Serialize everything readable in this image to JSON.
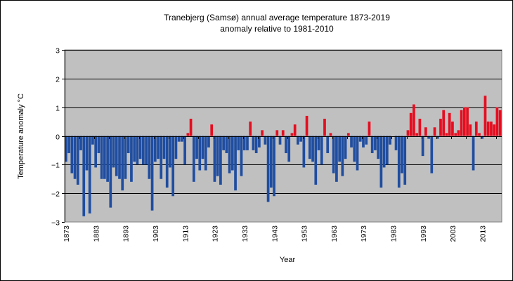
{
  "chart_data": {
    "type": "bar",
    "title": "Tranebjerg (Samsø) annual average  temperature 1873-2019",
    "subtitle": "anomaly relative to 1981-2010",
    "xlabel": "Year",
    "ylabel": "Temperature anomaly °C",
    "ylim": [
      -3,
      3
    ],
    "yticks": [
      3,
      2,
      1,
      0,
      -1,
      -2,
      -3
    ],
    "xticks": [
      "1873",
      "1883",
      "1893",
      "1903",
      "1913",
      "1923",
      "1933",
      "1943",
      "1953",
      "1963",
      "1973",
      "1983",
      "1993",
      "2003",
      "2013"
    ],
    "grid": true,
    "legend": "none",
    "colors": {
      "positive": "#e60d1f",
      "negative": "#1f4da0",
      "plot_background": "#c0c0c0",
      "gridline": "#000000"
    },
    "x": [
      1873,
      1874,
      1875,
      1876,
      1877,
      1878,
      1879,
      1880,
      1881,
      1882,
      1883,
      1884,
      1885,
      1886,
      1887,
      1888,
      1889,
      1890,
      1891,
      1892,
      1893,
      1894,
      1895,
      1896,
      1897,
      1898,
      1899,
      1900,
      1901,
      1902,
      1903,
      1904,
      1905,
      1906,
      1907,
      1908,
      1909,
      1910,
      1911,
      1912,
      1913,
      1914,
      1915,
      1916,
      1917,
      1918,
      1919,
      1920,
      1921,
      1922,
      1923,
      1924,
      1925,
      1926,
      1927,
      1928,
      1929,
      1930,
      1931,
      1932,
      1933,
      1934,
      1935,
      1936,
      1937,
      1938,
      1939,
      1940,
      1941,
      1942,
      1943,
      1944,
      1945,
      1946,
      1947,
      1948,
      1949,
      1950,
      1951,
      1952,
      1953,
      1954,
      1955,
      1956,
      1957,
      1958,
      1959,
      1960,
      1961,
      1962,
      1963,
      1964,
      1965,
      1966,
      1967,
      1968,
      1969,
      1970,
      1971,
      1972,
      1973,
      1974,
      1975,
      1976,
      1977,
      1978,
      1979,
      1980,
      1981,
      1982,
      1983,
      1984,
      1985,
      1986,
      1987,
      1988,
      1989,
      1990,
      1991,
      1992,
      1993,
      1994,
      1995,
      1996,
      1997,
      1998,
      1999,
      2000,
      2001,
      2002,
      2003,
      2004,
      2005,
      2006,
      2007,
      2008,
      2009,
      2010,
      2011,
      2012,
      2013,
      2014,
      2015,
      2016,
      2017,
      2018,
      2019
    ],
    "values": [
      -0.9,
      -0.6,
      -1.3,
      -1.5,
      -1.7,
      -0.5,
      -2.8,
      -1.2,
      -2.7,
      -0.3,
      -1.1,
      -0.6,
      -1.5,
      -1.5,
      -1.6,
      -2.5,
      -1.1,
      -1.4,
      -1.5,
      -1.9,
      -1.5,
      -0.6,
      -1.6,
      -0.9,
      -1.0,
      -0.8,
      -1.0,
      -1.0,
      -1.5,
      -2.6,
      -0.9,
      -0.8,
      -1.5,
      -0.8,
      -1.8,
      -1.1,
      -2.1,
      -0.8,
      -0.2,
      -0.2,
      -1.0,
      0.1,
      0.6,
      -1.6,
      -0.8,
      -1.2,
      -0.8,
      -1.2,
      -0.4,
      0.4,
      -1.6,
      -1.4,
      -1.7,
      -0.5,
      -0.6,
      -1.3,
      -1.2,
      -1.9,
      -0.5,
      -1.4,
      -0.5,
      -0.5,
      0.5,
      -0.5,
      -0.6,
      -0.4,
      0.2,
      -0.3,
      -2.3,
      -1.8,
      -2.1,
      0.2,
      -0.3,
      0.2,
      -0.6,
      -0.9,
      0.1,
      0.4,
      -0.3,
      -0.2,
      -1.1,
      0.7,
      -0.8,
      -0.9,
      -1.7,
      -0.5,
      -1.0,
      0.6,
      -0.6,
      0.1,
      -1.3,
      -1.6,
      -0.9,
      -1.4,
      -0.8,
      0.1,
      -0.4,
      -0.9,
      -1.2,
      -0.2,
      -0.4,
      -0.3,
      0.5,
      -0.6,
      -0.5,
      -0.8,
      -1.8,
      -1.1,
      -1.0,
      -0.3,
      0.0,
      -0.5,
      -1.8,
      -1.3,
      -1.7,
      0.2,
      0.8,
      1.1,
      0.1,
      0.6,
      -0.7,
      0.3,
      -0.1,
      -1.3,
      0.3,
      -0.1,
      0.6,
      0.9,
      0.1,
      0.8,
      0.5,
      0.1,
      0.2,
      0.9,
      1.0,
      1.0,
      0.4,
      -1.2,
      0.5,
      0.1,
      -0.1,
      1.4,
      0.5,
      0.5,
      0.4,
      1.0,
      0.9
    ]
  }
}
